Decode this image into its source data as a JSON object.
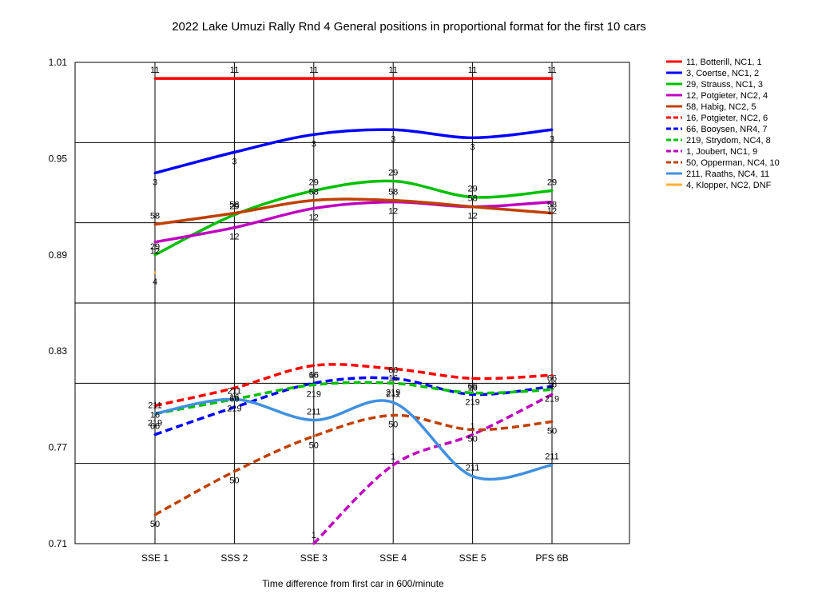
{
  "chart_data": {
    "type": "line",
    "title": "2022 Lake Umuzi Rally Rnd 4  General positions in proportional format for the first 10 cars",
    "xlabel": "Time difference from first car in 600/minute",
    "ylabel": "",
    "categories": [
      "SSE 1",
      "SSS 2",
      "SSE 3",
      "SSE 4",
      "SSE 5",
      "PFS 6B"
    ],
    "y_ticks": [
      "1.01",
      "0.95",
      "0.89",
      "0.83",
      "0.77",
      "0.71"
    ],
    "ylim": [
      0.71,
      1.01
    ],
    "grid": true,
    "legend_position": "right",
    "series": [
      {
        "name": "11, Botterill, NC1, 1",
        "color": "#ff0000",
        "dash": false,
        "label": "11",
        "values": [
          1.0,
          1.0,
          1.0,
          1.0,
          1.0,
          1.0
        ]
      },
      {
        "name": "3, Coertse, NC1, 2",
        "color": "#0000ff",
        "dash": false,
        "label": "3",
        "values": [
          0.941,
          0.954,
          0.965,
          0.968,
          0.963,
          0.968
        ]
      },
      {
        "name": "29, Strauss, NC1, 3",
        "color": "#00c000",
        "dash": false,
        "label": "29",
        "values": [
          0.89,
          0.915,
          0.93,
          0.936,
          0.926,
          0.93
        ]
      },
      {
        "name": "12, Potgieter, NC2, 4",
        "color": "#c000c0",
        "dash": false,
        "label": "12",
        "values": [
          0.898,
          0.907,
          0.919,
          0.923,
          0.92,
          0.923
        ]
      },
      {
        "name": "58, Habig, NC2, 5",
        "color": "#c04000",
        "dash": false,
        "label": "58",
        "values": [
          0.909,
          0.916,
          0.924,
          0.924,
          0.92,
          0.916
        ]
      },
      {
        "name": "16, Potgieter, NC2, 6",
        "color": "#ff0000",
        "dash": true,
        "label": "16",
        "values": [
          0.796,
          0.807,
          0.821,
          0.819,
          0.813,
          0.815
        ]
      },
      {
        "name": "66, Booysen, NR4, 7",
        "color": "#0000ff",
        "dash": true,
        "label": "66",
        "values": [
          0.778,
          0.795,
          0.81,
          0.813,
          0.803,
          0.808
        ]
      },
      {
        "name": "219, Strydom, NC4, 8",
        "color": "#00c000",
        "dash": true,
        "label": "219",
        "values": [
          0.791,
          0.8,
          0.809,
          0.81,
          0.804,
          0.806
        ]
      },
      {
        "name": "1, Joubert, NC1, 9",
        "color": "#c000c0",
        "dash": true,
        "label": "1",
        "values": [
          null,
          null,
          0.71,
          0.759,
          0.778,
          0.803
        ]
      },
      {
        "name": "50, Opperman, NC4, 10",
        "color": "#c04000",
        "dash": true,
        "label": "50",
        "values": [
          0.728,
          0.755,
          0.777,
          0.79,
          0.781,
          0.786
        ]
      },
      {
        "name": "211, Raaths, NC4, 11",
        "color": "#4090e0",
        "dash": false,
        "label": "211",
        "values": [
          0.791,
          0.8,
          0.787,
          0.798,
          0.752,
          0.759
        ]
      },
      {
        "name": "4, Klopper, NC2, DNF",
        "color": "#ffb030",
        "dash": false,
        "label": "4",
        "values": [
          0.879,
          null,
          null,
          null,
          null,
          null
        ]
      }
    ]
  }
}
